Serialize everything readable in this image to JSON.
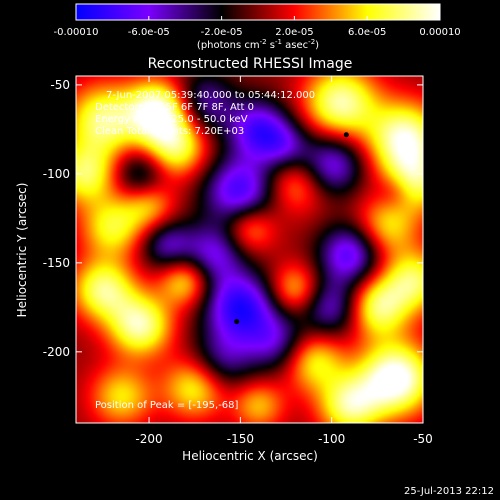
{
  "colorbar": {
    "tick_values": [
      -0.0001,
      -6e-05,
      -2e-05,
      2e-05,
      6e-05,
      0.0001
    ],
    "tick_labels": [
      "-0.00010",
      "-6.0e-05",
      "-2.0e-05",
      "2.0e-05",
      "6.0e-05",
      "0.00010"
    ],
    "units_prefix": "(photons cm",
    "units_exp1": "-2",
    "units_mid": " s",
    "units_exp2": "-1",
    "units_mid2": " asec",
    "units_exp3": "-2",
    "units_suffix": ")",
    "range": [
      -0.0001,
      0.0001
    ],
    "colormap": [
      "#0000ff",
      "#7a00ff",
      "#000000",
      "#ff0000",
      "#ffff00",
      "#ffffff"
    ]
  },
  "chart_data": {
    "type": "heatmap",
    "title": "Reconstructed RHESSI Image",
    "xlabel": "Heliocentric X (arcsec)",
    "ylabel": "Heliocentric Y (arcsec)",
    "xlim": [
      -240,
      -50
    ],
    "ylim": [
      -240,
      -45
    ],
    "x_ticks": [
      -200,
      -150,
      -100,
      -50
    ],
    "x_tick_labels": [
      "-200",
      "-150",
      "-100",
      "-50"
    ],
    "y_ticks": [
      -200,
      -150,
      -100,
      -50
    ],
    "y_tick_labels": [
      "-200",
      "-150",
      "-100",
      "-50"
    ],
    "annotations": {
      "time_range": "7-Jun-2007 05:39:40.000 to 05:44:12.000",
      "detectors": "Detectors: 4F 5F 6F 7F 8F, Att 0",
      "energy": "Energy Range: 25.0 - 50.0 keV",
      "method": "Clean     Total Counts: 7.20E+03",
      "peak": "Position of Peak = [-195,-68]"
    },
    "markers": [
      {
        "x": -92,
        "y": -78
      },
      {
        "x": -152,
        "y": -183
      }
    ],
    "blobs": [
      {
        "x": -225,
        "y": -70,
        "a": 1.0,
        "s": 14
      },
      {
        "x": -195,
        "y": -65,
        "a": 1.3,
        "s": 12
      },
      {
        "x": -185,
        "y": -85,
        "a": 0.9,
        "s": 12
      },
      {
        "x": -95,
        "y": -60,
        "a": 1.1,
        "s": 14
      },
      {
        "x": -60,
        "y": -80,
        "a": 1.2,
        "s": 14
      },
      {
        "x": -55,
        "y": -105,
        "a": 0.9,
        "s": 12
      },
      {
        "x": -235,
        "y": -100,
        "a": 0.9,
        "s": 12
      },
      {
        "x": -220,
        "y": -130,
        "a": 0.8,
        "s": 12
      },
      {
        "x": -200,
        "y": -118,
        "a": 0.6,
        "s": 10
      },
      {
        "x": -145,
        "y": -130,
        "a": 0.7,
        "s": 10
      },
      {
        "x": -120,
        "y": -105,
        "a": 0.6,
        "s": 12
      },
      {
        "x": -70,
        "y": -130,
        "a": 0.7,
        "s": 12
      },
      {
        "x": -75,
        "y": -175,
        "a": 1.0,
        "s": 12
      },
      {
        "x": -55,
        "y": -160,
        "a": 0.9,
        "s": 12
      },
      {
        "x": -225,
        "y": -165,
        "a": 1.0,
        "s": 12
      },
      {
        "x": -205,
        "y": -185,
        "a": 1.1,
        "s": 12
      },
      {
        "x": -180,
        "y": -160,
        "a": 0.8,
        "s": 10
      },
      {
        "x": -120,
        "y": -165,
        "a": 0.7,
        "s": 10
      },
      {
        "x": -110,
        "y": -205,
        "a": 0.8,
        "s": 12
      },
      {
        "x": -65,
        "y": -215,
        "a": 1.4,
        "s": 14
      },
      {
        "x": -90,
        "y": -230,
        "a": 1.0,
        "s": 12
      },
      {
        "x": -215,
        "y": -225,
        "a": 0.7,
        "s": 12
      },
      {
        "x": -175,
        "y": -220,
        "a": 0.8,
        "s": 12
      },
      {
        "x": -140,
        "y": -230,
        "a": 0.6,
        "s": 10
      },
      {
        "x": -170,
        "y": -60,
        "a": -0.7,
        "s": 12
      },
      {
        "x": -140,
        "y": -75,
        "a": -1.0,
        "s": 12
      },
      {
        "x": -150,
        "y": -110,
        "a": -1.1,
        "s": 14
      },
      {
        "x": -125,
        "y": -85,
        "a": -0.6,
        "s": 10
      },
      {
        "x": -100,
        "y": -95,
        "a": -0.9,
        "s": 12
      },
      {
        "x": -90,
        "y": -145,
        "a": -1.0,
        "s": 12
      },
      {
        "x": -100,
        "y": -175,
        "a": -0.8,
        "s": 12
      },
      {
        "x": -150,
        "y": -175,
        "a": -1.2,
        "s": 14
      },
      {
        "x": -165,
        "y": -145,
        "a": -0.8,
        "s": 12
      },
      {
        "x": -190,
        "y": -140,
        "a": -0.7,
        "s": 10
      },
      {
        "x": -205,
        "y": -100,
        "a": -0.6,
        "s": 10
      },
      {
        "x": -130,
        "y": -195,
        "a": -0.7,
        "s": 12
      },
      {
        "x": -160,
        "y": -205,
        "a": -0.6,
        "s": 12
      },
      {
        "x": -65,
        "y": -110,
        "a": -0.4,
        "s": 8
      }
    ]
  },
  "footer": {
    "timestamp": "25-Jul-2013 22:12"
  }
}
